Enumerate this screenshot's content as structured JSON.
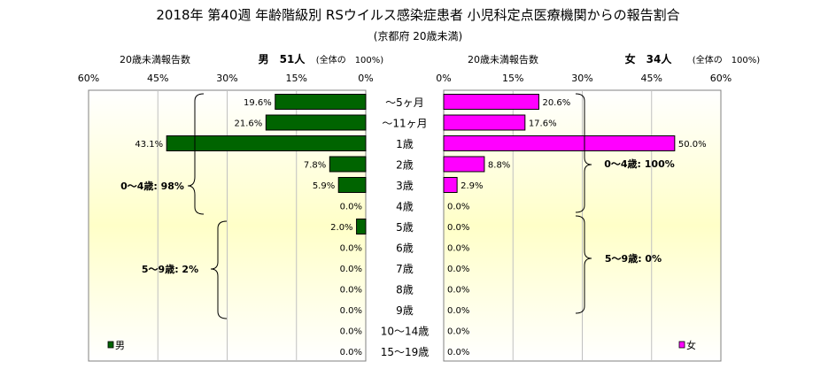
{
  "chart_data": {
    "type": "bar",
    "title": "2018年 第40週 年齢階級別 RSウイルス感染症患者 小児科定点医療機関からの報告割合",
    "subtitle": "(京都府 20歳未満)",
    "categories": [
      "～5ヶ月",
      "～11ヶ月",
      "1歳",
      "2歳",
      "3歳",
      "4歳",
      "5歳",
      "6歳",
      "7歳",
      "8歳",
      "9歳",
      "10～14歳",
      "15～19歳"
    ],
    "xlim": [
      0,
      60
    ],
    "ticks": [
      "60%",
      "45%",
      "30%",
      "15%",
      "0%"
    ],
    "ticks_right": [
      "0%",
      "15%",
      "30%",
      "45%",
      "60%"
    ],
    "male": {
      "axis_label": "20歳未満報告数",
      "header": "男　51人",
      "header_note": "(全体の　100%)",
      "legend": "男",
      "color": "#006400",
      "values": [
        19.6,
        21.6,
        43.1,
        7.8,
        5.9,
        0.0,
        2.0,
        0.0,
        0.0,
        0.0,
        0.0,
        0.0,
        0.0
      ],
      "labels": [
        "19.6%",
        "21.6%",
        "43.1%",
        "7.8%",
        "5.9%",
        "0.0%",
        "2.0%",
        "0.0%",
        "0.0%",
        "0.0%",
        "0.0%",
        "0.0%",
        "0.0%"
      ],
      "group_0_4": "0～4歳: 98%",
      "group_5_9": "5～9歳: 2%"
    },
    "female": {
      "axis_label": "20歳未満報告数",
      "header": "女　34人",
      "header_note": "(全体の　100%)",
      "legend": "女",
      "color": "#ff00ff",
      "values": [
        20.6,
        17.6,
        50.0,
        8.8,
        2.9,
        0.0,
        0.0,
        0.0,
        0.0,
        0.0,
        0.0,
        0.0,
        0.0
      ],
      "labels": [
        "20.6%",
        "17.6%",
        "50.0%",
        "8.8%",
        "2.9%",
        "0.0%",
        "0.0%",
        "0.0%",
        "0.0%",
        "0.0%",
        "0.0%",
        "0.0%",
        "0.0%"
      ],
      "group_0_4": "0～4歳: 100%",
      "group_5_9": "5～9歳: 0%"
    },
    "grid": true,
    "legend_position": "bottom"
  }
}
